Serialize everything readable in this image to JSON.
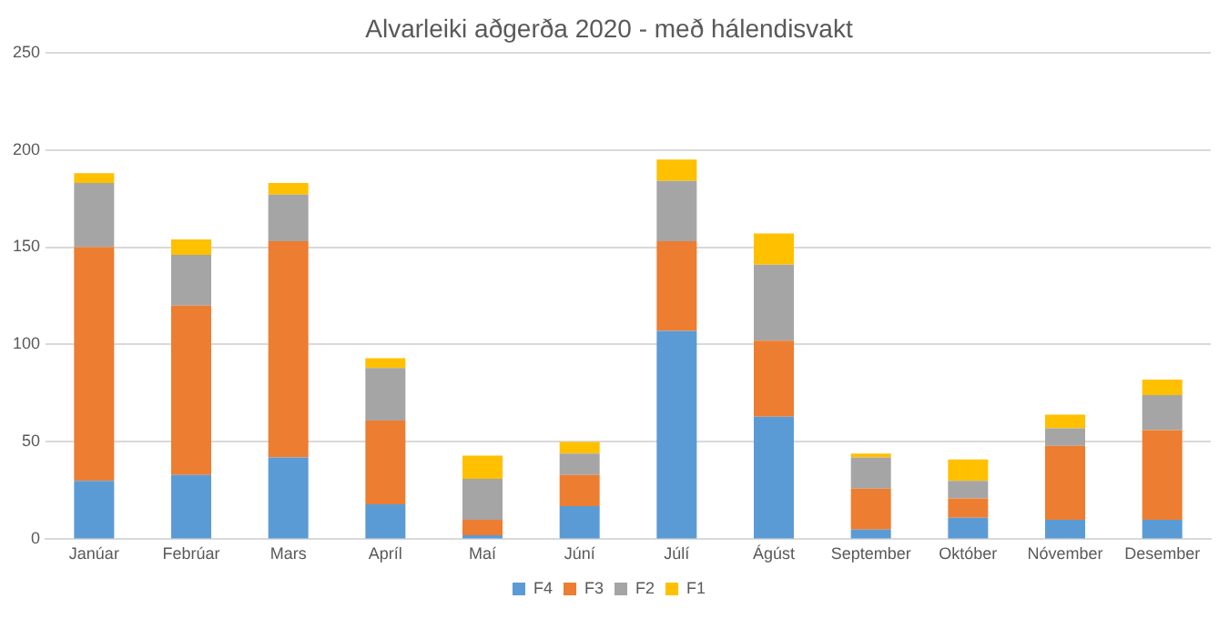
{
  "chart_data": {
    "type": "bar",
    "title": "Alvarleiki aðgerða 2020 - með hálendisvakt",
    "stacked": true,
    "grid": "y",
    "legend": "bottom",
    "categories": [
      "Janúar",
      "Febrúar",
      "Mars",
      "Apríl",
      "Maí",
      "Júní",
      "Júlí",
      "Ágúst",
      "September",
      "Október",
      "Nóvember",
      "Desember"
    ],
    "ylim": [
      0,
      250
    ],
    "yticks": [
      0,
      50,
      100,
      150,
      200,
      250
    ],
    "series": [
      {
        "name": "F4",
        "color": "#5b9bd5",
        "values": [
          30,
          33,
          42,
          18,
          2,
          17,
          107,
          63,
          5,
          11,
          10,
          10
        ]
      },
      {
        "name": "F3",
        "color": "#ed7d31",
        "values": [
          120,
          87,
          111,
          43,
          8,
          16,
          46,
          39,
          21,
          10,
          38,
          46
        ]
      },
      {
        "name": "F2",
        "color": "#a5a5a5",
        "values": [
          33,
          26,
          24,
          27,
          21,
          11,
          31,
          39,
          16,
          9,
          9,
          18
        ]
      },
      {
        "name": "F1",
        "color": "#ffc000",
        "values": [
          5,
          8,
          6,
          5,
          12,
          6,
          11,
          16,
          2,
          11,
          7,
          8
        ]
      }
    ]
  }
}
